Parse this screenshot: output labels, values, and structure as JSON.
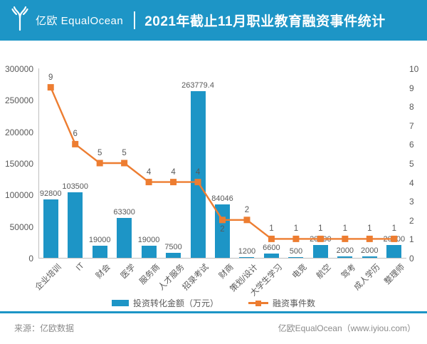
{
  "header": {
    "logo_text": "亿欧 EqualOcean",
    "title": "2021年截止11月职业教育融资事件统计"
  },
  "chart_data": {
    "type": "combo",
    "categories": [
      "企业培训",
      "IT",
      "财会",
      "医学",
      "服务商",
      "人才服务",
      "招录考试",
      "财商",
      "策划/设计",
      "大学生学习",
      "电竞",
      "航空",
      "驾考",
      "成人学历",
      "整理师"
    ],
    "series": [
      {
        "name": "投资转化金额（万元）",
        "type": "bar",
        "color": "#1D95C6",
        "values": [
          92800,
          103500,
          19000,
          63300,
          19000,
          7500,
          263779.4,
          84046,
          1200,
          6600,
          500,
          20000,
          2000,
          2000,
          20000
        ]
      },
      {
        "name": "融资事件数",
        "type": "line",
        "color": "#ED7D31",
        "values": [
          9,
          6,
          5,
          5,
          4,
          4,
          4,
          2,
          2,
          1,
          1,
          1,
          1,
          1,
          1
        ]
      }
    ],
    "left_axis": {
      "min": 0,
      "max": 300000,
      "step": 50000
    },
    "right_axis": {
      "min": 0,
      "max": 10,
      "step": 1
    },
    "grid": false,
    "legend_position": "bottom",
    "line_label_below_indices": [
      7
    ],
    "text_color": "#595959"
  },
  "footer": {
    "source": "来源：亿欧数据",
    "site": "亿欧EqualOcean（www.iyiou.com）"
  }
}
